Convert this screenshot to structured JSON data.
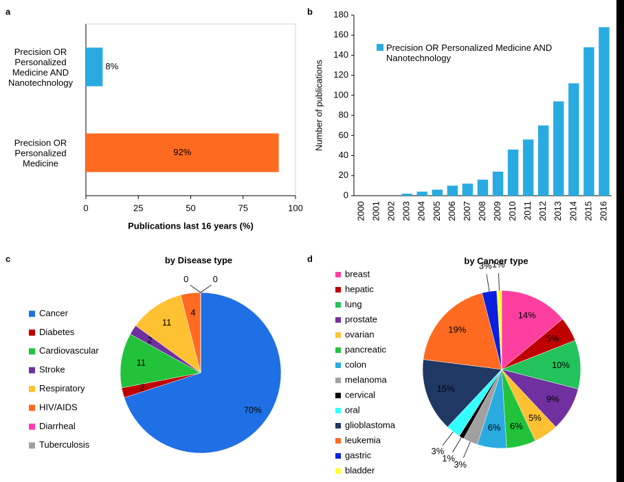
{
  "chart_data": [
    {
      "type": "bar",
      "orientation": "horizontal",
      "panel": "a",
      "categories": [
        "Precision OR Personalized Medicine AND Nanotechnology",
        "Precision OR Personalized Medicine"
      ],
      "values": [
        8,
        92
      ],
      "value_labels": [
        "8%",
        "92%"
      ],
      "colors": [
        "#29abe2",
        "#ff6a21"
      ],
      "xlim": [
        0,
        100
      ],
      "xticks": [
        0,
        25,
        50,
        75,
        100
      ],
      "xlabel": "Publications last 16 years (%)"
    },
    {
      "type": "bar",
      "panel": "b",
      "categories": [
        "2000",
        "2001",
        "2002",
        "2003",
        "2004",
        "2005",
        "2006",
        "2007",
        "2008",
        "2009",
        "2010",
        "2011",
        "2012",
        "2013",
        "2014",
        "2015",
        "2016"
      ],
      "series": [
        {
          "name": "Precision OR Personalized Medicine AND Nanotechnology",
          "color": "#29abe2",
          "values": [
            0,
            0,
            0,
            2,
            4,
            6,
            10,
            12,
            16,
            24,
            46,
            56,
            70,
            94,
            112,
            148,
            168
          ]
        }
      ],
      "ylim": [
        0,
        180
      ],
      "yticks": [
        0,
        20,
        40,
        60,
        80,
        100,
        120,
        140,
        160,
        180
      ],
      "ylabel": "Number of publications"
    },
    {
      "type": "pie",
      "panel": "c",
      "title": "by Disease type",
      "categories": [
        "Cancer",
        "Diabetes",
        "Cardiovascular",
        "Stroke",
        "Respiratory",
        "HIV/AIDS",
        "Diarrheal",
        "Tuberculosis"
      ],
      "values": [
        70,
        2,
        11,
        2,
        11,
        4,
        0,
        0
      ],
      "value_labels": [
        "70%",
        "2",
        "11",
        "2",
        "11",
        "4",
        "0",
        "0"
      ],
      "colors": [
        "#1f6fe5",
        "#c00000",
        "#22c33a",
        "#7030a0",
        "#ffc032",
        "#ff6a21",
        "#ff3fb0",
        "#a0a0a0"
      ]
    },
    {
      "type": "pie",
      "panel": "d",
      "title": "by Cancer type",
      "categories": [
        "breast",
        "hepatic",
        "lung",
        "prostate",
        "ovarian",
        "pancreatic",
        "colon",
        "melanoma",
        "cervical",
        "oral",
        "glioblastoma",
        "leukemia",
        "gastric",
        "bladder"
      ],
      "values": [
        14,
        5,
        10,
        9,
        5,
        6,
        6,
        3,
        1,
        3,
        15,
        19,
        3,
        1
      ],
      "value_labels": [
        "14%",
        "5%",
        "10%",
        "9%",
        "5%",
        "6%",
        "6%",
        "3%",
        "1%",
        "3%",
        "15%",
        "19%",
        "3%",
        "1%"
      ],
      "colors": [
        "#ff3fa0",
        "#c00000",
        "#22c35a",
        "#7030a0",
        "#ffc032",
        "#22c33a",
        "#29abe2",
        "#a0a0a0",
        "#000000",
        "#33ffff",
        "#1f3864",
        "#ff6a21",
        "#0a1fe0",
        "#ffff33"
      ]
    }
  ]
}
